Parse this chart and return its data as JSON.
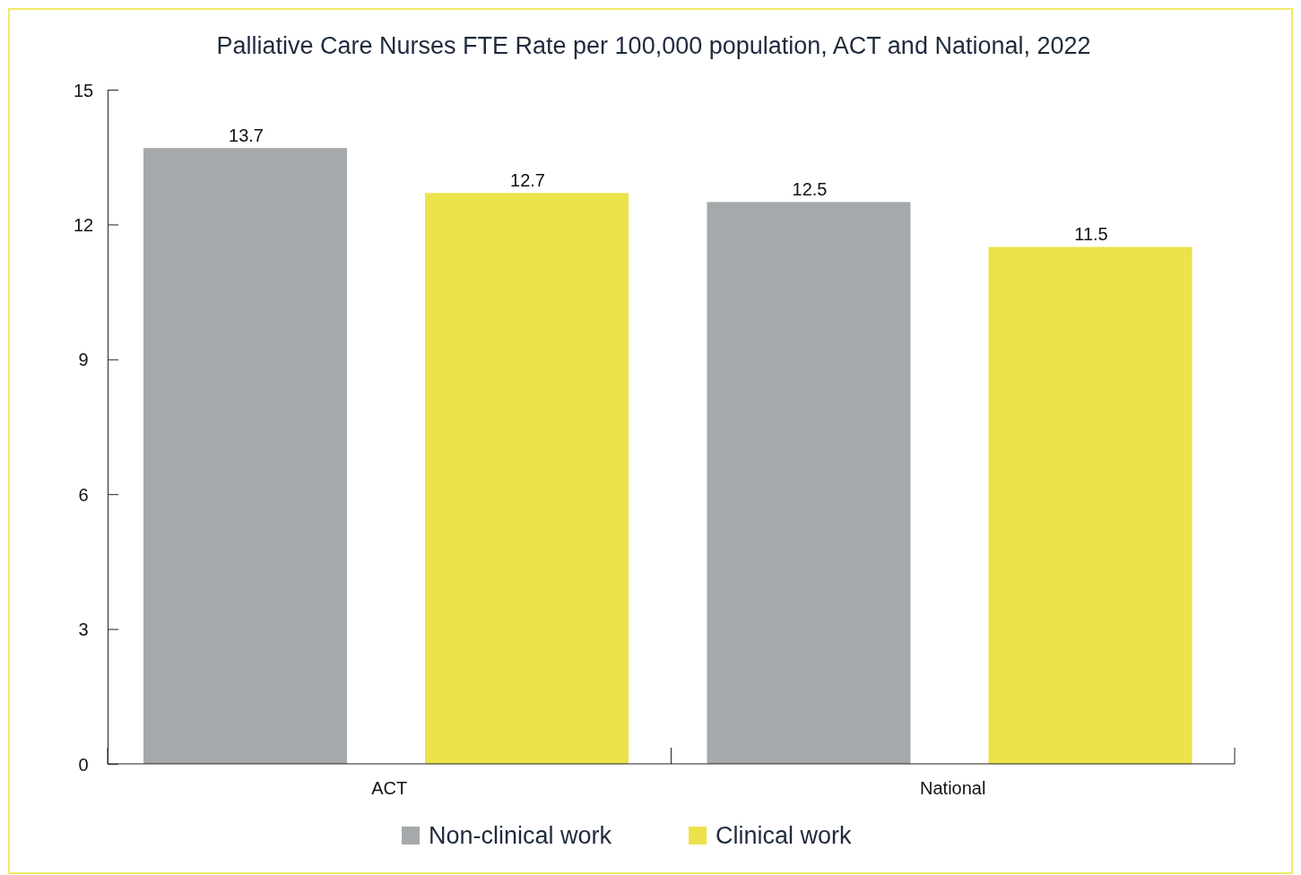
{
  "chart_data": {
    "type": "bar",
    "title": "Palliative Care Nurses FTE Rate per 100,000 population, ACT and National, 2022",
    "categories": [
      "ACT",
      "National"
    ],
    "series": [
      {
        "name": "Non-clinical work",
        "color": "#a6a9ab",
        "values": [
          13.7,
          12.5
        ]
      },
      {
        "name": "Clinical work",
        "color": "#ece24a",
        "values": [
          12.7,
          11.5
        ]
      }
    ],
    "ylim": [
      0,
      15
    ],
    "yticks": [
      0,
      3,
      6,
      9,
      12,
      15
    ],
    "grid": false,
    "legend": "bottom",
    "data_labels": true
  }
}
